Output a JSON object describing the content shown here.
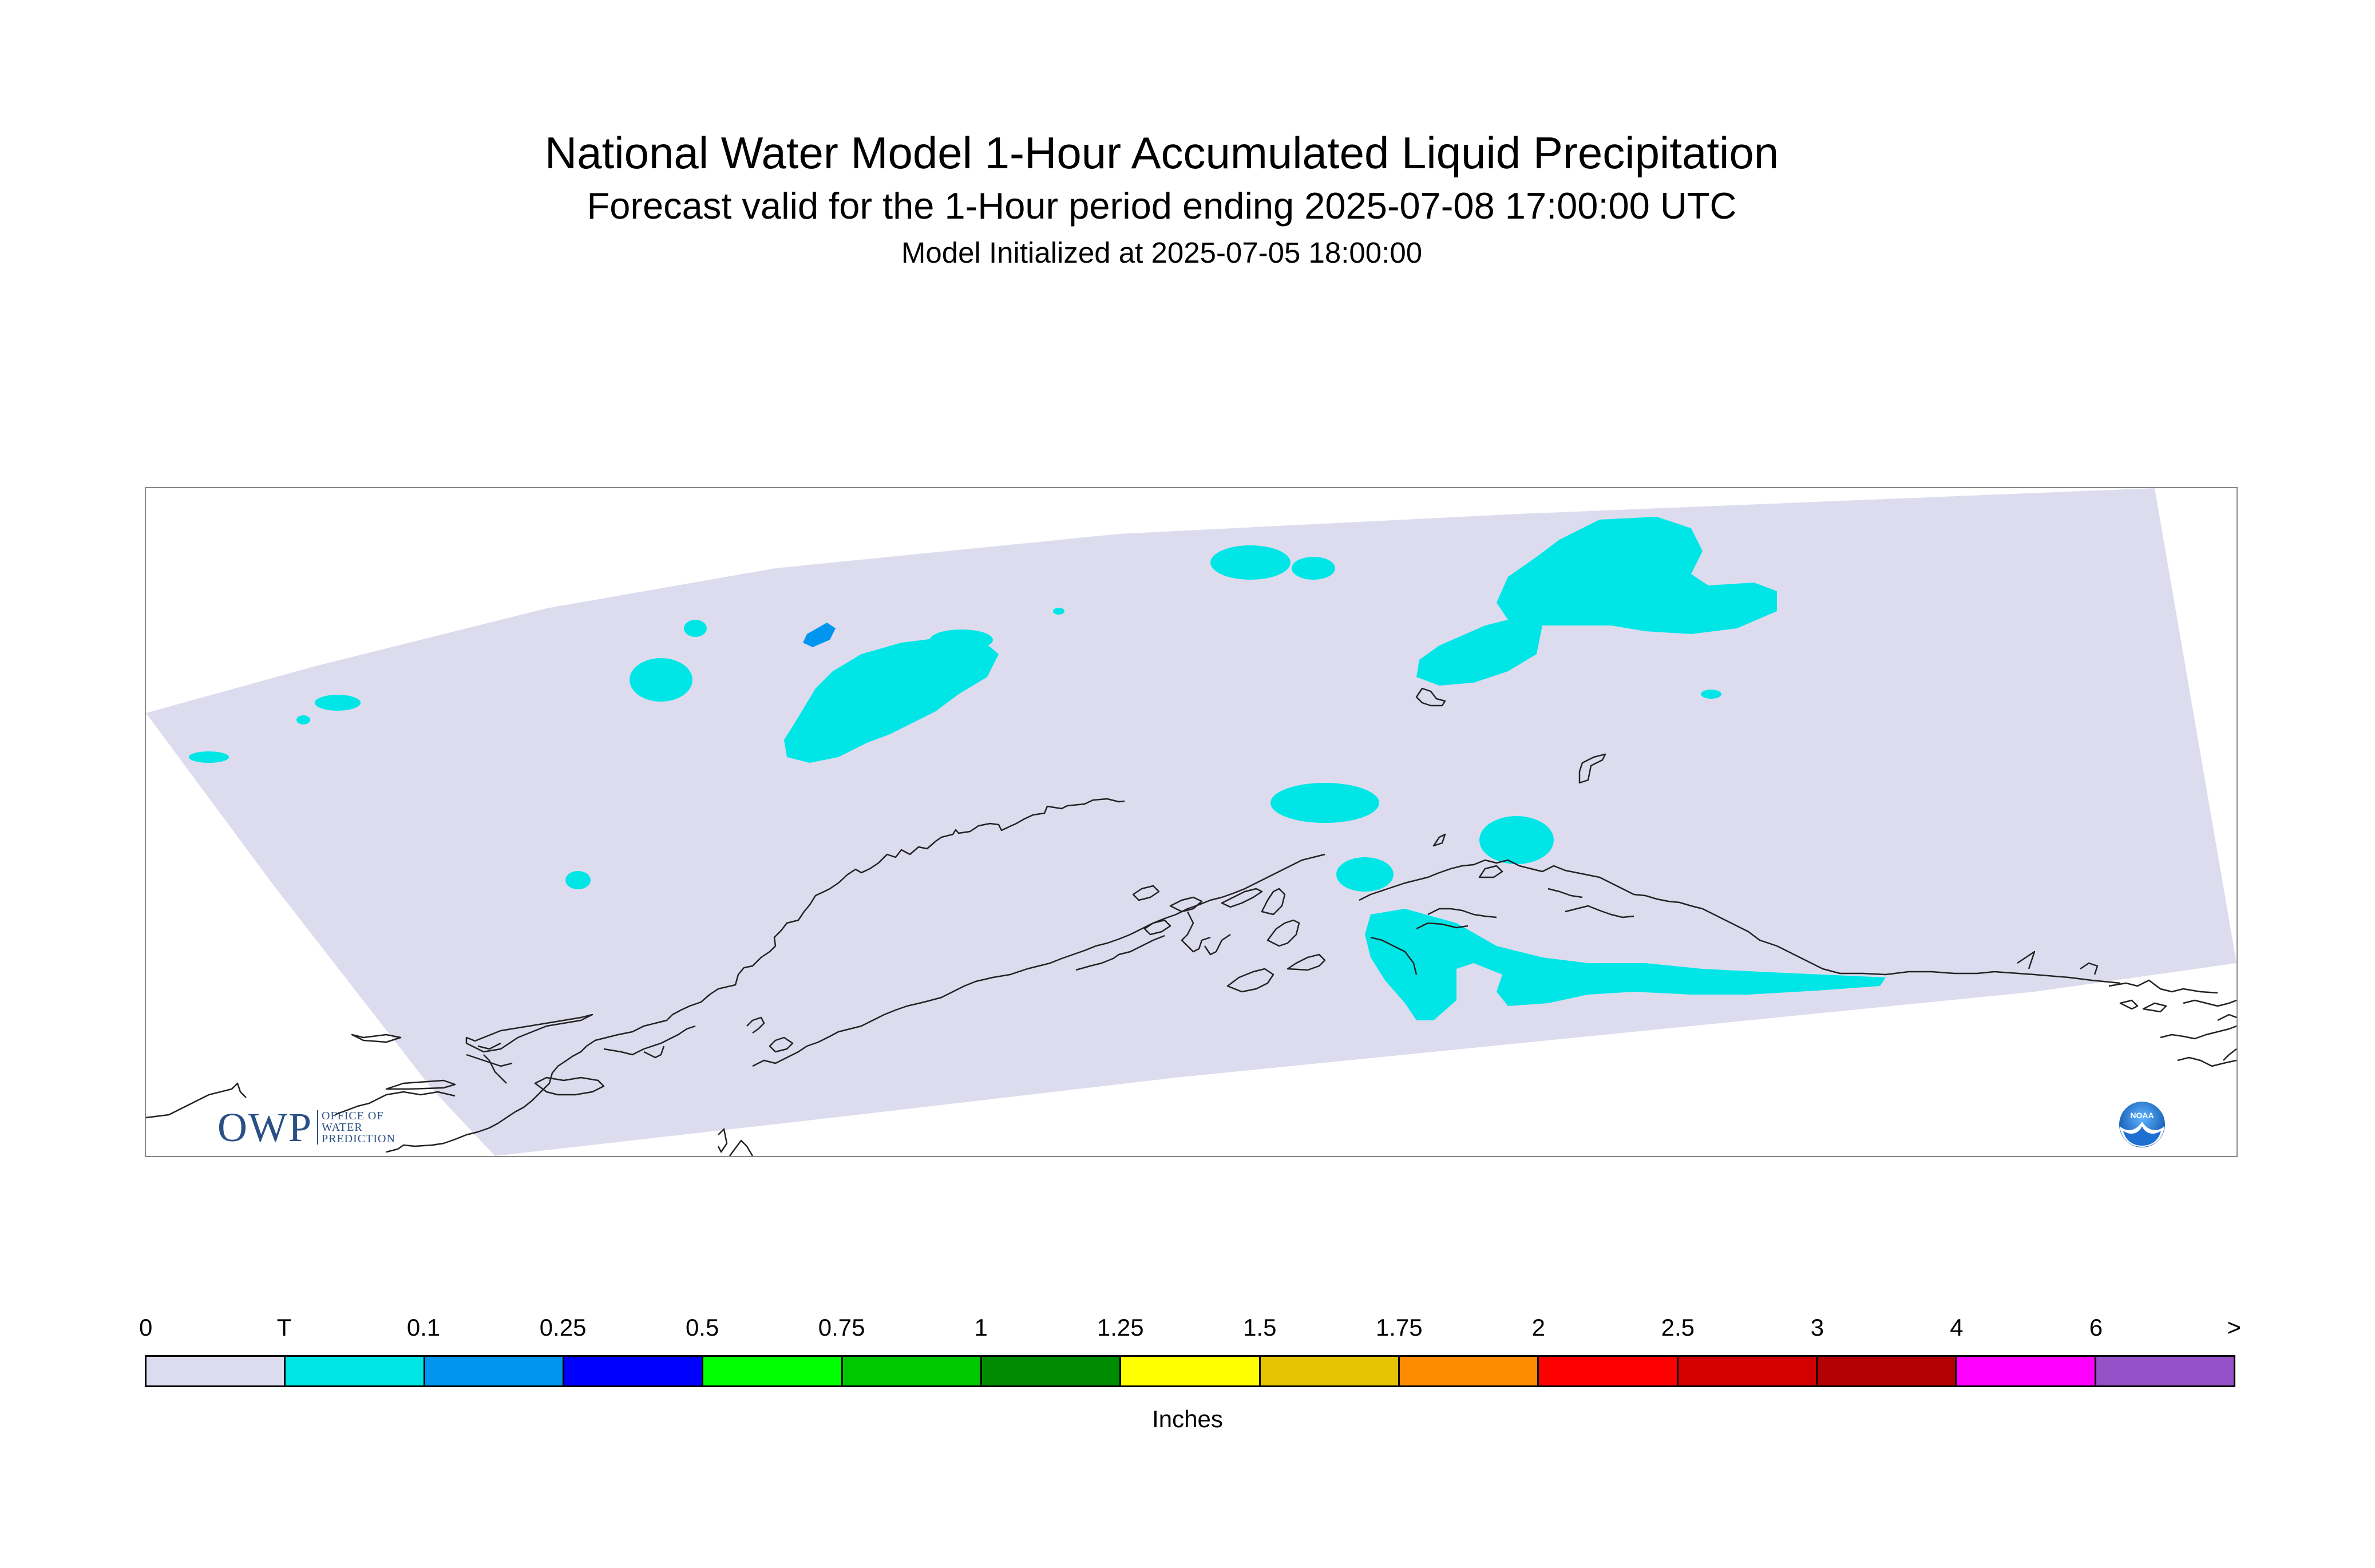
{
  "header": {
    "title": "National Water Model 1-Hour Accumulated Liquid Precipitation",
    "subtitle": "Forecast valid for the 1-Hour period ending 2025-07-08 17:00:00 UTC",
    "init": "Model Initialized at 2025-07-05 18:00:00"
  },
  "map": {
    "domain_fill_color": "#dcdcee",
    "coastline_color": "#000000",
    "region": "Alaska"
  },
  "logos": {
    "owp": {
      "mark": "OWP",
      "line1": "OFFICE OF",
      "line2": "WATER",
      "line3": "PREDICTION",
      "icon": "owp-logo"
    },
    "noaa": {
      "text": "NOAA",
      "icon": "noaa-logo"
    }
  },
  "legend": {
    "labels": [
      "0",
      "T",
      "0.1",
      "0.25",
      "0.5",
      "0.75",
      "1",
      "1.25",
      "1.5",
      "1.75",
      "2",
      "2.5",
      "3",
      "4",
      "6",
      ">"
    ],
    "colors": [
      "#dcdcee",
      "#00e6e6",
      "#0096f0",
      "#0000ff",
      "#00ff00",
      "#00c800",
      "#008c00",
      "#ffff00",
      "#e6c300",
      "#ff8c00",
      "#ff0000",
      "#d20000",
      "#b40000",
      "#ff00ff",
      "#9650c8"
    ],
    "units": "Inches"
  }
}
